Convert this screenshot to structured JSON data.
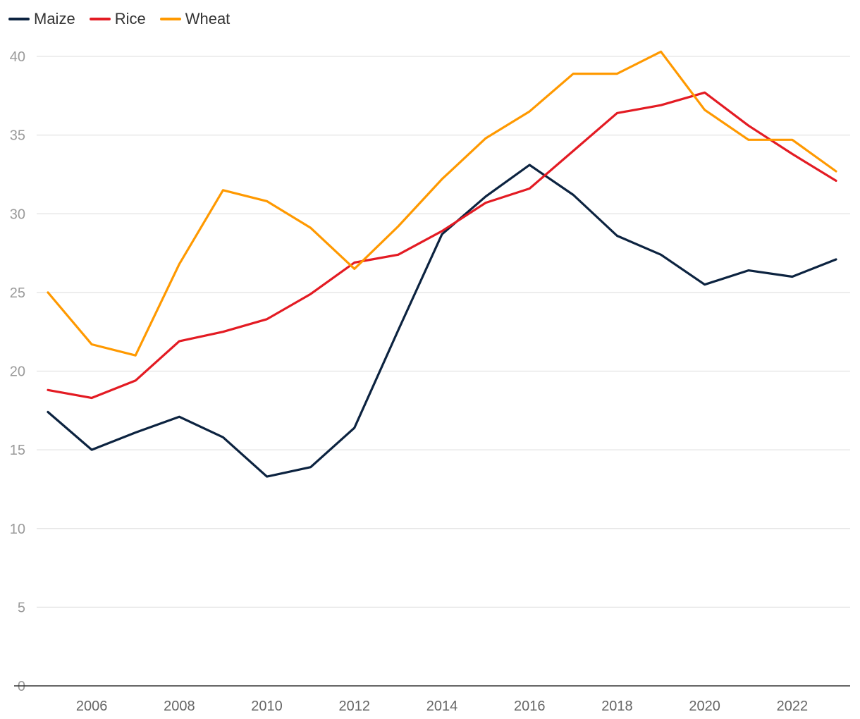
{
  "chart_data": {
    "type": "line",
    "title": "",
    "xlabel": "",
    "ylabel": "",
    "x": [
      2005,
      2006,
      2007,
      2008,
      2009,
      2010,
      2011,
      2012,
      2013,
      2014,
      2015,
      2016,
      2017,
      2018,
      2019,
      2020,
      2021,
      2022,
      2023
    ],
    "x_ticks": [
      "2006",
      "2008",
      "2010",
      "2012",
      "2014",
      "2016",
      "2018",
      "2020",
      "2022"
    ],
    "y_ticks": [
      "0",
      "5",
      "10",
      "15",
      "20",
      "25",
      "30",
      "35",
      "40"
    ],
    "ylim": [
      0,
      40
    ],
    "xlim": [
      2005,
      2023
    ],
    "grid": true,
    "legend_position": "top-left",
    "series": [
      {
        "name": "Maize",
        "color": "#0c2340",
        "values": [
          17.4,
          15.0,
          16.1,
          17.1,
          15.8,
          13.3,
          13.9,
          16.4,
          22.6,
          28.7,
          31.1,
          33.1,
          31.2,
          28.6,
          27.4,
          25.5,
          26.4,
          26.0,
          27.1
        ]
      },
      {
        "name": "Rice",
        "color": "#e31b23",
        "values": [
          18.8,
          18.3,
          19.4,
          21.9,
          22.5,
          23.3,
          24.9,
          26.9,
          27.4,
          28.9,
          30.7,
          31.6,
          34.0,
          36.4,
          36.9,
          37.7,
          35.6,
          33.8,
          32.1
        ]
      },
      {
        "name": "Wheat",
        "color": "#ff9900",
        "values": [
          25.0,
          21.7,
          21.0,
          26.8,
          31.5,
          30.8,
          29.1,
          26.5,
          29.2,
          32.2,
          34.8,
          36.5,
          38.9,
          38.9,
          40.3,
          36.6,
          34.7,
          34.7,
          32.7
        ]
      }
    ]
  }
}
